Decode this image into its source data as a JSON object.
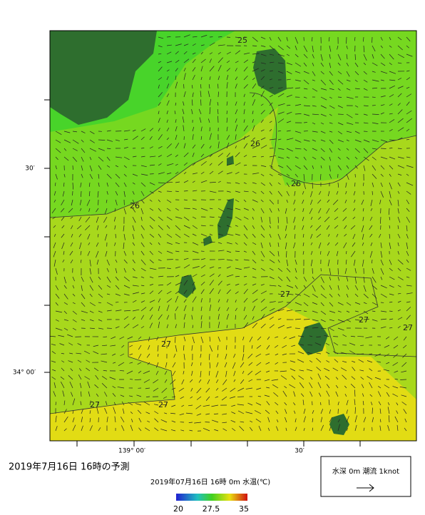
{
  "map": {
    "title": "2019年7月16日 16時の予測",
    "subtitle": "2019年07月16日 16時 0m 水温(℃)",
    "lat_labels": [
      "30′",
      "34° 00′"
    ],
    "lon_labels": [
      "139° 00′",
      "30′"
    ],
    "contour_labels": [
      25,
      26,
      26,
      26,
      27,
      27,
      27,
      27,
      27,
      27
    ],
    "colorbar_ticks": [
      20,
      27.5,
      35
    ],
    "legend": "水深 0m 潮流 1knot"
  }
}
